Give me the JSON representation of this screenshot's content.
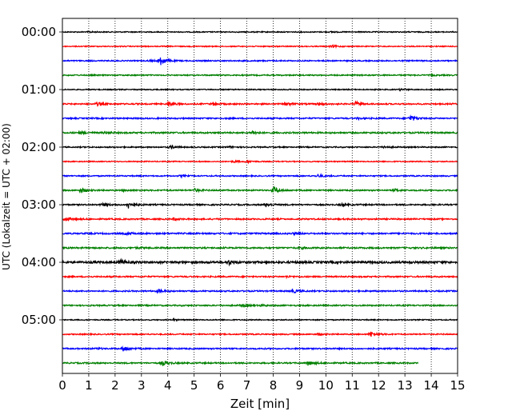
{
  "chart_data": {
    "type": "line",
    "description_free": true,
    "xlabel": "Zeit  [min]",
    "ylabel": "UTC (Lokalzeit = UTC + 02:00)",
    "xlim": [
      0,
      15
    ],
    "x_ticks": [
      0,
      1,
      2,
      3,
      4,
      5,
      6,
      7,
      8,
      9,
      10,
      11,
      12,
      13,
      14,
      15
    ],
    "x_tick_labels": [
      "0",
      "1",
      "2",
      "3",
      "4",
      "5",
      "6",
      "7",
      "8",
      "9",
      "10",
      "11",
      "12",
      "13",
      "14",
      "15"
    ],
    "y_tick_labels": [
      "00:00",
      "01:00",
      "02:00",
      "03:00",
      "04:00",
      "05:00"
    ],
    "grid": "vertical dotted",
    "row_interval_minutes": 15,
    "color_cycle": [
      "#000000",
      "#ff0000",
      "#0000ff",
      "#008000"
    ],
    "traces": [
      {
        "start": "00:00",
        "end_min": 15,
        "noise": 0.6,
        "events": [
          [
            1.0,
            0.6
          ],
          [
            10.2,
            0.5
          ]
        ]
      },
      {
        "start": "00:15",
        "end_min": 15,
        "noise": 0.6,
        "events": [
          [
            10.2,
            1.5
          ]
        ]
      },
      {
        "start": "00:30",
        "end_min": 15,
        "noise": 0.7,
        "events": [
          [
            3.7,
            6.5
          ],
          [
            3.3,
            0.8
          ]
        ]
      },
      {
        "start": "00:45",
        "end_min": 15,
        "noise": 0.7,
        "events": [
          [
            14.0,
            0.6
          ]
        ]
      },
      {
        "start": "01:00",
        "end_min": 15,
        "noise": 0.6,
        "events": [
          [
            12.8,
            1.2
          ]
        ]
      },
      {
        "start": "01:15",
        "end_min": 15,
        "noise": 0.8,
        "events": [
          [
            1.3,
            2.0
          ],
          [
            4.0,
            3.2
          ],
          [
            5.7,
            1.5
          ],
          [
            8.5,
            1.8
          ],
          [
            9.7,
            2.0
          ],
          [
            11.1,
            2.6
          ]
        ]
      },
      {
        "start": "01:30",
        "end_min": 15,
        "noise": 0.8,
        "events": [
          [
            11.2,
            1.0
          ],
          [
            13.2,
            4.0
          ]
        ]
      },
      {
        "start": "01:45",
        "end_min": 15,
        "noise": 0.9,
        "events": [
          [
            0.7,
            1.6
          ],
          [
            1.6,
            1.4
          ],
          [
            7.2,
            2.2
          ]
        ]
      },
      {
        "start": "02:00",
        "end_min": 15,
        "noise": 0.7,
        "events": [
          [
            4.1,
            2.4
          ],
          [
            6.3,
            1.0
          ],
          [
            12.2,
            1.2
          ]
        ]
      },
      {
        "start": "02:15",
        "end_min": 15,
        "noise": 0.6,
        "events": [
          [
            6.5,
            1.2
          ],
          [
            7.0,
            1.4
          ]
        ]
      },
      {
        "start": "02:30",
        "end_min": 15,
        "noise": 0.7,
        "events": [
          [
            4.5,
            1.0
          ],
          [
            9.7,
            2.2
          ]
        ]
      },
      {
        "start": "02:45",
        "end_min": 15,
        "noise": 0.8,
        "events": [
          [
            0.7,
            3.0
          ],
          [
            2.3,
            1.2
          ],
          [
            5.0,
            1.8
          ],
          [
            8.0,
            4.8
          ],
          [
            12.6,
            1.4
          ]
        ]
      },
      {
        "start": "03:00",
        "end_min": 15,
        "noise": 0.8,
        "events": [
          [
            1.5,
            1.8
          ],
          [
            2.5,
            4.5
          ],
          [
            7.7,
            2.8
          ],
          [
            10.6,
            1.2
          ]
        ]
      },
      {
        "start": "03:15",
        "end_min": 15,
        "noise": 0.8,
        "events": [
          [
            0.1,
            2.6
          ],
          [
            4.2,
            1.4
          ]
        ]
      },
      {
        "start": "03:30",
        "end_min": 15,
        "noise": 0.9,
        "events": [
          [
            2.4,
            1.4
          ],
          [
            8.8,
            1.2
          ]
        ]
      },
      {
        "start": "03:45",
        "end_min": 15,
        "noise": 0.9,
        "events": [
          [
            2.8,
            1.0
          ],
          [
            9.0,
            1.0
          ]
        ]
      },
      {
        "start": "04:00",
        "end_min": 15,
        "noise": 1.3,
        "events": [
          [
            2.2,
            3.0
          ],
          [
            6.3,
            2.8
          ]
        ]
      },
      {
        "start": "04:15",
        "end_min": 15,
        "noise": 0.8,
        "events": [
          [
            8.5,
            1.0
          ]
        ]
      },
      {
        "start": "04:30",
        "end_min": 15,
        "noise": 0.8,
        "events": [
          [
            3.6,
            2.8
          ],
          [
            8.7,
            2.6
          ]
        ]
      },
      {
        "start": "04:45",
        "end_min": 15,
        "noise": 0.8,
        "events": [
          [
            6.8,
            1.6
          ],
          [
            7.5,
            1.0
          ]
        ]
      },
      {
        "start": "05:00",
        "end_min": 15,
        "noise": 0.6,
        "events": [
          [
            4.2,
            0.8
          ]
        ]
      },
      {
        "start": "05:15",
        "end_min": 15,
        "noise": 0.7,
        "events": [
          [
            9.7,
            1.6
          ],
          [
            11.7,
            3.5
          ]
        ]
      },
      {
        "start": "05:30",
        "end_min": 15,
        "noise": 0.8,
        "events": [
          [
            2.3,
            3.8
          ],
          [
            1.3,
            0.8
          ]
        ]
      },
      {
        "start": "05:45",
        "end_min": 13.5,
        "noise": 0.8,
        "events": [
          [
            3.8,
            3.2
          ],
          [
            9.3,
            3.2
          ]
        ]
      }
    ]
  }
}
